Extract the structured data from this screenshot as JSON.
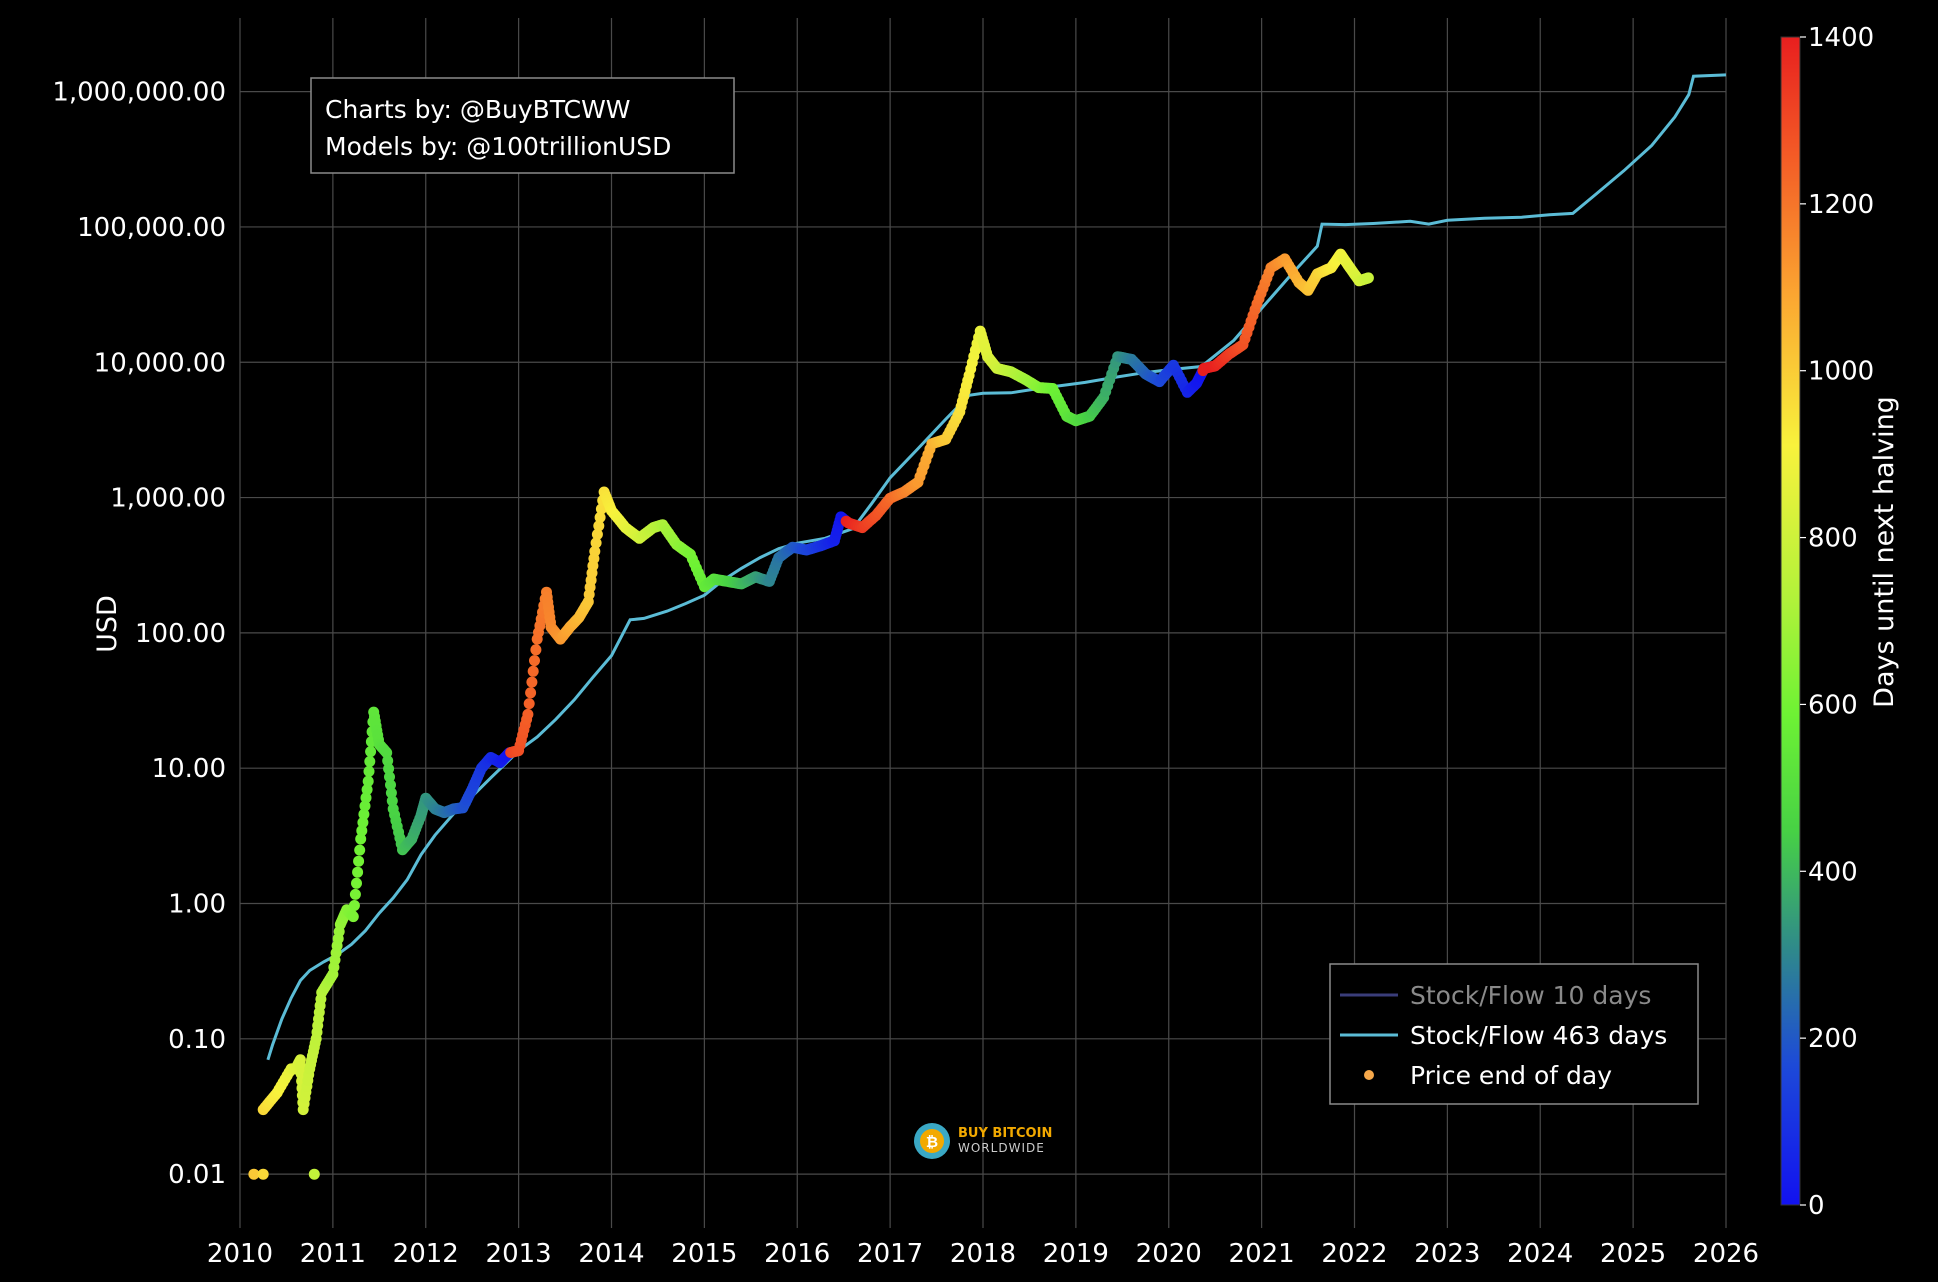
{
  "credits": {
    "line1": "Charts by: @BuyBTCWW",
    "line2": "Models by: @100trillionUSD"
  },
  "logo": {
    "icon": "bitcoin-icon",
    "line1": "BUY BITCOIN",
    "line2": "WORLDWIDE"
  },
  "colors": {
    "background": "#000000",
    "grid": "#4a4a4a",
    "sf463": "#5bbcd6",
    "sf10": "#3a3d7a",
    "legend_border": "#888888",
    "legend_dot": "#f6a84a"
  },
  "chart_data": {
    "type": "scatter",
    "title": "",
    "xlabel": "",
    "ylabel": "USD",
    "yscale": "log",
    "xlim": [
      2010,
      2026
    ],
    "ylim": [
      0.004,
      3500000
    ],
    "x_ticks": [
      "2010",
      "2011",
      "2012",
      "2013",
      "2014",
      "2015",
      "2016",
      "2017",
      "2018",
      "2019",
      "2020",
      "2021",
      "2022",
      "2023",
      "2024",
      "2025",
      "2026"
    ],
    "y_ticks": [
      {
        "value": 0.01,
        "label": "0.01"
      },
      {
        "value": 0.1,
        "label": "0.10"
      },
      {
        "value": 1,
        "label": "1.00"
      },
      {
        "value": 10,
        "label": "10.00"
      },
      {
        "value": 100,
        "label": "100.00"
      },
      {
        "value": 1000,
        "label": "1,000.00"
      },
      {
        "value": 10000,
        "label": "10,000.00"
      },
      {
        "value": 100000,
        "label": "100,000.00"
      },
      {
        "value": 1000000,
        "label": "1,000,000.00"
      }
    ],
    "grid": true,
    "legend_position": "bottom-right",
    "legend": [
      {
        "label": "Stock/Flow 10 days",
        "kind": "line",
        "dim": true
      },
      {
        "label": "Stock/Flow 463 days",
        "kind": "line",
        "dim": false
      },
      {
        "label": "Price end of day",
        "kind": "dot",
        "dim": false
      }
    ],
    "colorbar": {
      "label": "Days until next halving",
      "min": 0,
      "max": 1400,
      "ticks": [
        0,
        200,
        400,
        600,
        800,
        1000,
        1200,
        1400
      ]
    },
    "series": [
      {
        "name": "Stock/Flow 463 days",
        "kind": "line",
        "points": [
          [
            2010.3,
            0.07
          ],
          [
            2010.35,
            0.09
          ],
          [
            2010.45,
            0.14
          ],
          [
            2010.55,
            0.2
          ],
          [
            2010.65,
            0.27
          ],
          [
            2010.75,
            0.32
          ],
          [
            2010.9,
            0.37
          ],
          [
            2011.05,
            0.42
          ],
          [
            2011.2,
            0.5
          ],
          [
            2011.35,
            0.63
          ],
          [
            2011.5,
            0.85
          ],
          [
            2011.65,
            1.1
          ],
          [
            2011.8,
            1.5
          ],
          [
            2011.95,
            2.3
          ],
          [
            2012.1,
            3.2
          ],
          [
            2012.3,
            4.6
          ],
          [
            2012.5,
            6.2
          ],
          [
            2012.7,
            8.5
          ],
          [
            2012.9,
            11.5
          ],
          [
            2013.0,
            13.5
          ],
          [
            2013.2,
            17
          ],
          [
            2013.4,
            23
          ],
          [
            2013.6,
            32
          ],
          [
            2013.8,
            47
          ],
          [
            2014.0,
            68
          ],
          [
            2014.2,
            125
          ],
          [
            2014.35,
            128
          ],
          [
            2014.6,
            145
          ],
          [
            2014.8,
            165
          ],
          [
            2015.0,
            190
          ],
          [
            2015.2,
            245
          ],
          [
            2015.4,
            300
          ],
          [
            2015.6,
            360
          ],
          [
            2015.8,
            420
          ],
          [
            2016.0,
            460
          ],
          [
            2016.3,
            500
          ],
          [
            2016.6,
            590
          ],
          [
            2016.8,
            900
          ],
          [
            2017.0,
            1400
          ],
          [
            2017.3,
            2300
          ],
          [
            2017.6,
            3800
          ],
          [
            2017.85,
            5700
          ],
          [
            2018.0,
            5900
          ],
          [
            2018.3,
            5950
          ],
          [
            2018.6,
            6400
          ],
          [
            2018.9,
            6800
          ],
          [
            2019.1,
            7100
          ],
          [
            2019.4,
            7700
          ],
          [
            2019.7,
            8300
          ],
          [
            2020.0,
            8800
          ],
          [
            2020.35,
            9300
          ],
          [
            2020.7,
            14500
          ],
          [
            2021.0,
            25000
          ],
          [
            2021.3,
            43000
          ],
          [
            2021.6,
            72000
          ],
          [
            2021.65,
            105000
          ],
          [
            2021.9,
            104000
          ],
          [
            2022.2,
            106000
          ],
          [
            2022.6,
            110000
          ],
          [
            2022.8,
            105000
          ],
          [
            2023.0,
            112000
          ],
          [
            2023.4,
            116000
          ],
          [
            2023.8,
            118000
          ],
          [
            2024.1,
            123000
          ],
          [
            2024.35,
            126000
          ],
          [
            2024.6,
            175000
          ],
          [
            2024.9,
            260000
          ],
          [
            2025.2,
            400000
          ],
          [
            2025.45,
            650000
          ],
          [
            2025.6,
            950000
          ],
          [
            2025.65,
            1300000
          ],
          [
            2026.0,
            1330000
          ]
        ]
      },
      {
        "name": "Price end of day",
        "kind": "scatter",
        "colored_by": "Days until next halving",
        "points": [
          [
            2010.15,
            0.01
          ],
          [
            2010.25,
            0.01
          ],
          [
            2010.8,
            0.01
          ],
          [
            2010.25,
            0.03
          ],
          [
            2010.4,
            0.04
          ],
          [
            2010.55,
            0.06
          ],
          [
            2010.6,
            0.06
          ],
          [
            2010.65,
            0.07
          ],
          [
            2010.68,
            0.03
          ],
          [
            2010.75,
            0.06
          ],
          [
            2010.82,
            0.1
          ],
          [
            2010.88,
            0.22
          ],
          [
            2011.0,
            0.3
          ],
          [
            2011.08,
            0.7
          ],
          [
            2011.15,
            0.9
          ],
          [
            2011.22,
            0.8
          ],
          [
            2011.3,
            3
          ],
          [
            2011.38,
            8
          ],
          [
            2011.44,
            26
          ],
          [
            2011.5,
            15
          ],
          [
            2011.58,
            13
          ],
          [
            2011.65,
            5
          ],
          [
            2011.75,
            2.5
          ],
          [
            2011.85,
            3
          ],
          [
            2011.95,
            4.5
          ],
          [
            2012.0,
            6
          ],
          [
            2012.1,
            5
          ],
          [
            2012.2,
            4.7
          ],
          [
            2012.3,
            5
          ],
          [
            2012.4,
            5.1
          ],
          [
            2012.5,
            7
          ],
          [
            2012.6,
            10
          ],
          [
            2012.7,
            12
          ],
          [
            2012.8,
            11
          ],
          [
            2012.9,
            13
          ],
          [
            2013.0,
            13.5
          ],
          [
            2013.1,
            25
          ],
          [
            2013.2,
            90
          ],
          [
            2013.3,
            200
          ],
          [
            2013.35,
            110
          ],
          [
            2013.45,
            90
          ],
          [
            2013.55,
            110
          ],
          [
            2013.65,
            130
          ],
          [
            2013.75,
            170
          ],
          [
            2013.82,
            400
          ],
          [
            2013.92,
            1100
          ],
          [
            2014.0,
            800
          ],
          [
            2014.15,
            600
          ],
          [
            2014.3,
            500
          ],
          [
            2014.45,
            600
          ],
          [
            2014.55,
            630
          ],
          [
            2014.7,
            450
          ],
          [
            2014.85,
            380
          ],
          [
            2015.0,
            220
          ],
          [
            2015.1,
            250
          ],
          [
            2015.25,
            240
          ],
          [
            2015.4,
            230
          ],
          [
            2015.55,
            260
          ],
          [
            2015.7,
            240
          ],
          [
            2015.8,
            360
          ],
          [
            2015.95,
            430
          ],
          [
            2016.1,
            410
          ],
          [
            2016.25,
            440
          ],
          [
            2016.4,
            480
          ],
          [
            2016.47,
            720
          ],
          [
            2016.55,
            650
          ],
          [
            2016.7,
            600
          ],
          [
            2016.85,
            740
          ],
          [
            2017.0,
            990
          ],
          [
            2017.15,
            1100
          ],
          [
            2017.3,
            1300
          ],
          [
            2017.45,
            2500
          ],
          [
            2017.6,
            2700
          ],
          [
            2017.75,
            4300
          ],
          [
            2017.85,
            8000
          ],
          [
            2017.97,
            17000
          ],
          [
            2018.05,
            11000
          ],
          [
            2018.15,
            9000
          ],
          [
            2018.3,
            8500
          ],
          [
            2018.45,
            7500
          ],
          [
            2018.6,
            6500
          ],
          [
            2018.75,
            6400
          ],
          [
            2018.9,
            4000
          ],
          [
            2019.0,
            3700
          ],
          [
            2019.15,
            4000
          ],
          [
            2019.3,
            5500
          ],
          [
            2019.45,
            11000
          ],
          [
            2019.6,
            10500
          ],
          [
            2019.75,
            8200
          ],
          [
            2019.9,
            7200
          ],
          [
            2020.05,
            9500
          ],
          [
            2020.2,
            6000
          ],
          [
            2020.3,
            7000
          ],
          [
            2020.38,
            9000
          ],
          [
            2020.5,
            9400
          ],
          [
            2020.65,
            11500
          ],
          [
            2020.8,
            13500
          ],
          [
            2020.95,
            27000
          ],
          [
            2021.1,
            50000
          ],
          [
            2021.25,
            58000
          ],
          [
            2021.4,
            39000
          ],
          [
            2021.5,
            34000
          ],
          [
            2021.6,
            45000
          ],
          [
            2021.75,
            50000
          ],
          [
            2021.85,
            63000
          ],
          [
            2021.95,
            50000
          ],
          [
            2022.05,
            40000
          ],
          [
            2022.15,
            42000
          ]
        ]
      }
    ]
  }
}
